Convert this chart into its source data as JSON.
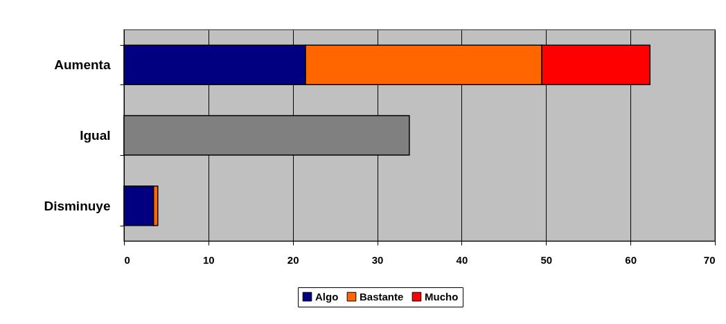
{
  "chart_data": {
    "type": "bar",
    "orientation": "horizontal",
    "stacked": true,
    "categories": [
      "Aumenta",
      "Igual",
      "Disminuye"
    ],
    "series": [
      {
        "name": "Algo",
        "color": "#000080",
        "values": [
          21.5,
          null,
          3.5
        ]
      },
      {
        "name": "Bastante",
        "color": "#ff6600",
        "values": [
          28.0,
          null,
          0.5
        ]
      },
      {
        "name": "Mucho",
        "color": "#ff0000",
        "values": [
          12.8,
          null,
          null
        ]
      },
      {
        "color": "#808080",
        "values": [
          null,
          33.8,
          null
        ]
      }
    ],
    "xlim": [
      0,
      70
    ],
    "xticks": [
      0,
      10,
      20,
      30,
      40,
      50,
      60,
      70
    ],
    "grid": "x",
    "legend": "bottom"
  }
}
